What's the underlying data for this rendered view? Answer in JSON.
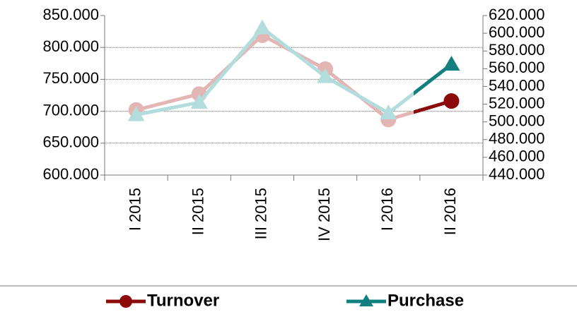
{
  "chart_data": {
    "type": "line",
    "categories": [
      "I 2015",
      "II 2015",
      "III 2015",
      "IV 2015",
      "I 2016",
      "II 2016"
    ],
    "series": [
      {
        "name": "Turnover",
        "color": "#8b0a0a",
        "axis": "y",
        "values": [
          702000,
          727000,
          819000,
          766000,
          687000,
          716000
        ]
      },
      {
        "name": "Purchase",
        "color": "#138080",
        "axis": "y2",
        "values": [
          508000,
          522000,
          606000,
          551000,
          510000,
          565000
        ]
      }
    ],
    "ylim": [
      600000,
      850000
    ],
    "yticks": [
      {
        "value": 600000,
        "label": "600.000"
      },
      {
        "value": 650000,
        "label": "650.000"
      },
      {
        "value": 700000,
        "label": "700.000"
      },
      {
        "value": 750000,
        "label": "750.000"
      },
      {
        "value": 800000,
        "label": "800.000"
      },
      {
        "value": 850000,
        "label": "850.000"
      }
    ],
    "y2lim": [
      440000,
      620000
    ],
    "y2ticks": [
      {
        "value": 440000,
        "label": "440.000"
      },
      {
        "value": 460000,
        "label": "460.000"
      },
      {
        "value": 480000,
        "label": "480.000"
      },
      {
        "value": 500000,
        "label": "500.000"
      },
      {
        "value": 520000,
        "label": "520.000"
      },
      {
        "value": 540000,
        "label": "540.000"
      },
      {
        "value": 560000,
        "label": "560.000"
      },
      {
        "value": 580000,
        "label": "580.000"
      },
      {
        "value": 600000,
        "label": "600.000"
      },
      {
        "value": 620000,
        "label": "620.000"
      }
    ],
    "grid": true,
    "legend": "bottom"
  }
}
